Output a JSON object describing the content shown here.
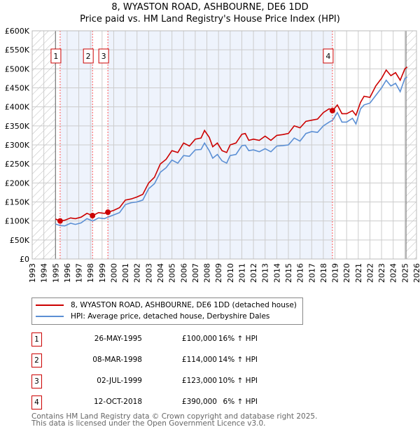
{
  "chart_data": {
    "type": "line",
    "title": "8, WYASTON ROAD, ASHBOURNE, DE6 1DD",
    "subtitle": "Price paid vs. HM Land Registry's House Price Index (HPI)",
    "xlim": [
      1993,
      2026
    ],
    "ylim": [
      0,
      600000
    ],
    "x_ticks": [
      "1993",
      "1994",
      "1995",
      "1996",
      "1997",
      "1998",
      "1999",
      "2000",
      "2001",
      "2002",
      "2003",
      "2004",
      "2005",
      "2006",
      "2007",
      "2008",
      "2009",
      "2010",
      "2011",
      "2012",
      "2013",
      "2014",
      "2015",
      "2016",
      "2017",
      "2018",
      "2019",
      "2020",
      "2021",
      "2022",
      "2023",
      "2024",
      "2025",
      "2026"
    ],
    "y_ticks": [
      {
        "v": 0,
        "label": "£0"
      },
      {
        "v": 50000,
        "label": "£50K"
      },
      {
        "v": 100000,
        "label": "£100K"
      },
      {
        "v": 150000,
        "label": "£150K"
      },
      {
        "v": 200000,
        "label": "£200K"
      },
      {
        "v": 250000,
        "label": "£250K"
      },
      {
        "v": 300000,
        "label": "£300K"
      },
      {
        "v": 350000,
        "label": "£350K"
      },
      {
        "v": 400000,
        "label": "£400K"
      },
      {
        "v": 450000,
        "label": "£450K"
      },
      {
        "v": 500000,
        "label": "£500K"
      },
      {
        "v": 550000,
        "label": "£550K"
      },
      {
        "v": 600000,
        "label": "£600K"
      }
    ],
    "grid": true,
    "hatched_ranges": [
      [
        1993,
        1995.0
      ],
      [
        2025.1,
        2026
      ]
    ],
    "shaded_ranges": [
      [
        1995.4,
        1998.18
      ],
      [
        1999.5,
        2018.78
      ]
    ],
    "series": [
      {
        "name": "8, WYASTON ROAD, ASHBOURNE, DE6 1DD (detached house)",
        "color": "#cc0000",
        "x": [
          1995.0,
          1995.4,
          1995.8,
          1996.3,
          1996.7,
          1997.2,
          1997.7,
          1998.2,
          1998.7,
          1999.2,
          1999.5,
          2000,
          2000.5,
          2001,
          2001.5,
          2002,
          2002.5,
          2003,
          2003.5,
          2004,
          2004.5,
          2005,
          2005.5,
          2006,
          2006.5,
          2007,
          2007.5,
          2007.8,
          2008.2,
          2008.5,
          2008.9,
          2009.3,
          2009.7,
          2010,
          2010.5,
          2011,
          2011.3,
          2011.6,
          2012,
          2012.5,
          2013,
          2013.5,
          2014,
          2014.5,
          2015,
          2015.5,
          2016,
          2016.5,
          2017,
          2017.5,
          2018,
          2018.5,
          2018.8,
          2019.2,
          2019.6,
          2020,
          2020.5,
          2020.8,
          2021.2,
          2021.5,
          2022,
          2022.5,
          2023,
          2023.4,
          2023.8,
          2024.2,
          2024.6,
          2025,
          2025.2
        ],
        "y": [
          105000,
          100000,
          102000,
          108000,
          106000,
          110000,
          120000,
          114000,
          122000,
          120000,
          123000,
          128000,
          135000,
          155000,
          158000,
          163000,
          170000,
          200000,
          215000,
          250000,
          262000,
          285000,
          280000,
          305000,
          297000,
          315000,
          318000,
          338000,
          320000,
          295000,
          305000,
          285000,
          280000,
          300000,
          305000,
          328000,
          330000,
          312000,
          315000,
          312000,
          323000,
          312000,
          325000,
          327000,
          330000,
          350000,
          345000,
          362000,
          365000,
          368000,
          385000,
          395000,
          390000,
          405000,
          382000,
          382000,
          390000,
          378000,
          412000,
          428000,
          425000,
          455000,
          475000,
          497000,
          482000,
          490000,
          470000,
          500000,
          505000
        ]
      },
      {
        "name": "HPI: Average price, detached house, Derbyshire Dales",
        "color": "#5b8fd4",
        "x": [
          1995.0,
          1995.4,
          1995.8,
          1996.3,
          1996.7,
          1997.2,
          1997.7,
          1998.2,
          1998.7,
          1999.2,
          1999.5,
          2000,
          2000.5,
          2001,
          2001.5,
          2002,
          2002.5,
          2003,
          2003.5,
          2004,
          2004.5,
          2005,
          2005.5,
          2006,
          2006.5,
          2007,
          2007.5,
          2007.8,
          2008.2,
          2008.5,
          2008.9,
          2009.3,
          2009.7,
          2010,
          2010.5,
          2011,
          2011.3,
          2011.6,
          2012,
          2012.5,
          2013,
          2013.5,
          2014,
          2014.5,
          2015,
          2015.5,
          2016,
          2016.5,
          2017,
          2017.5,
          2018,
          2018.5,
          2018.8,
          2019.2,
          2019.6,
          2020,
          2020.5,
          2020.8,
          2021.2,
          2021.5,
          2022,
          2022.5,
          2023,
          2023.4,
          2023.8,
          2024.2,
          2024.6,
          2025,
          2025.2
        ],
        "y": [
          92000,
          88000,
          87000,
          94000,
          91000,
          95000,
          106000,
          100000,
          108000,
          106000,
          110000,
          116000,
          122000,
          143000,
          148000,
          150000,
          155000,
          185000,
          198000,
          228000,
          240000,
          260000,
          252000,
          272000,
          270000,
          287000,
          288000,
          305000,
          285000,
          265000,
          275000,
          258000,
          252000,
          272000,
          275000,
          298000,
          299000,
          285000,
          287000,
          282000,
          290000,
          282000,
          297000,
          298000,
          300000,
          318000,
          310000,
          330000,
          335000,
          333000,
          350000,
          360000,
          365000,
          385000,
          360000,
          360000,
          370000,
          355000,
          395000,
          405000,
          410000,
          430000,
          450000,
          470000,
          455000,
          462000,
          440000,
          475000,
          478000
        ]
      }
    ],
    "sales": [
      {
        "label": "1",
        "x": 1995.4,
        "y": 100000
      },
      {
        "label": "2",
        "x": 1998.18,
        "y": 114000
      },
      {
        "label": "3",
        "x": 1999.5,
        "y": 123000
      },
      {
        "label": "4",
        "x": 2018.78,
        "y": 390000
      }
    ]
  },
  "legend": {
    "property": "8, WYASTON ROAD, ASHBOURNE, DE6 1DD (detached house)",
    "hpi": "HPI: Average price, detached house, Derbyshire Dales"
  },
  "transactions": [
    {
      "num": "1",
      "date": "26-MAY-1995",
      "price": "£100,000",
      "hpi": "16% ↑ HPI"
    },
    {
      "num": "2",
      "date": "08-MAR-1998",
      "price": "£114,000",
      "hpi": "14% ↑ HPI"
    },
    {
      "num": "3",
      "date": "02-JUL-1999",
      "price": "£123,000",
      "hpi": "10% ↑ HPI"
    },
    {
      "num": "4",
      "date": "12-OCT-2018",
      "price": "£390,000",
      "hpi": "6% ↑ HPI"
    }
  ],
  "footer": {
    "line1": "Contains HM Land Registry data © Crown copyright and database right 2025.",
    "line2": "This data is licensed under the Open Government Licence v3.0."
  }
}
